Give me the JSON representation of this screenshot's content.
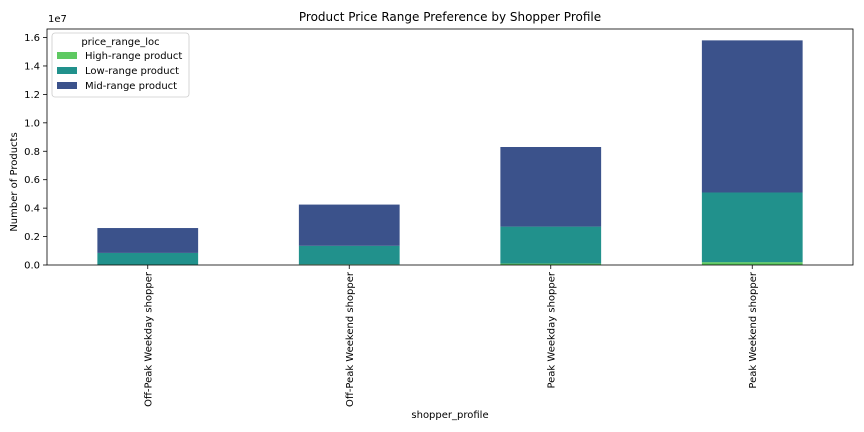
{
  "chart_data": {
    "type": "bar",
    "stacked": true,
    "title": "Product Price Range Preference by Shopper Profile",
    "xlabel": "shopper_profile",
    "ylabel": "Number of Products",
    "y_scale_label": "1e7",
    "ylim": [
      0,
      16600000
    ],
    "yticks": [
      0,
      2000000,
      4000000,
      6000000,
      8000000,
      10000000,
      12000000,
      14000000,
      16000000
    ],
    "ytick_labels": [
      "0.0",
      "0.2",
      "0.4",
      "0.6",
      "0.8",
      "1.0",
      "1.2",
      "1.4",
      "1.6"
    ],
    "categories": [
      "Off-Peak Weekday shopper",
      "Off-Peak Weekend shopper",
      "Peak Weekday shopper",
      "Peak Weekend shopper"
    ],
    "series": [
      {
        "name": "High-range product",
        "color": "#5ec962",
        "values": [
          30000,
          50000,
          100000,
          200000
        ]
      },
      {
        "name": "Low-range product",
        "color": "#21918c",
        "values": [
          820000,
          1300000,
          2600000,
          4900000
        ]
      },
      {
        "name": "Mid-range product",
        "color": "#3b528b",
        "values": [
          1750000,
          2900000,
          5600000,
          10700000
        ]
      }
    ],
    "legend": {
      "title": "price_range_loc",
      "placement": "top-left"
    },
    "grid": false
  }
}
